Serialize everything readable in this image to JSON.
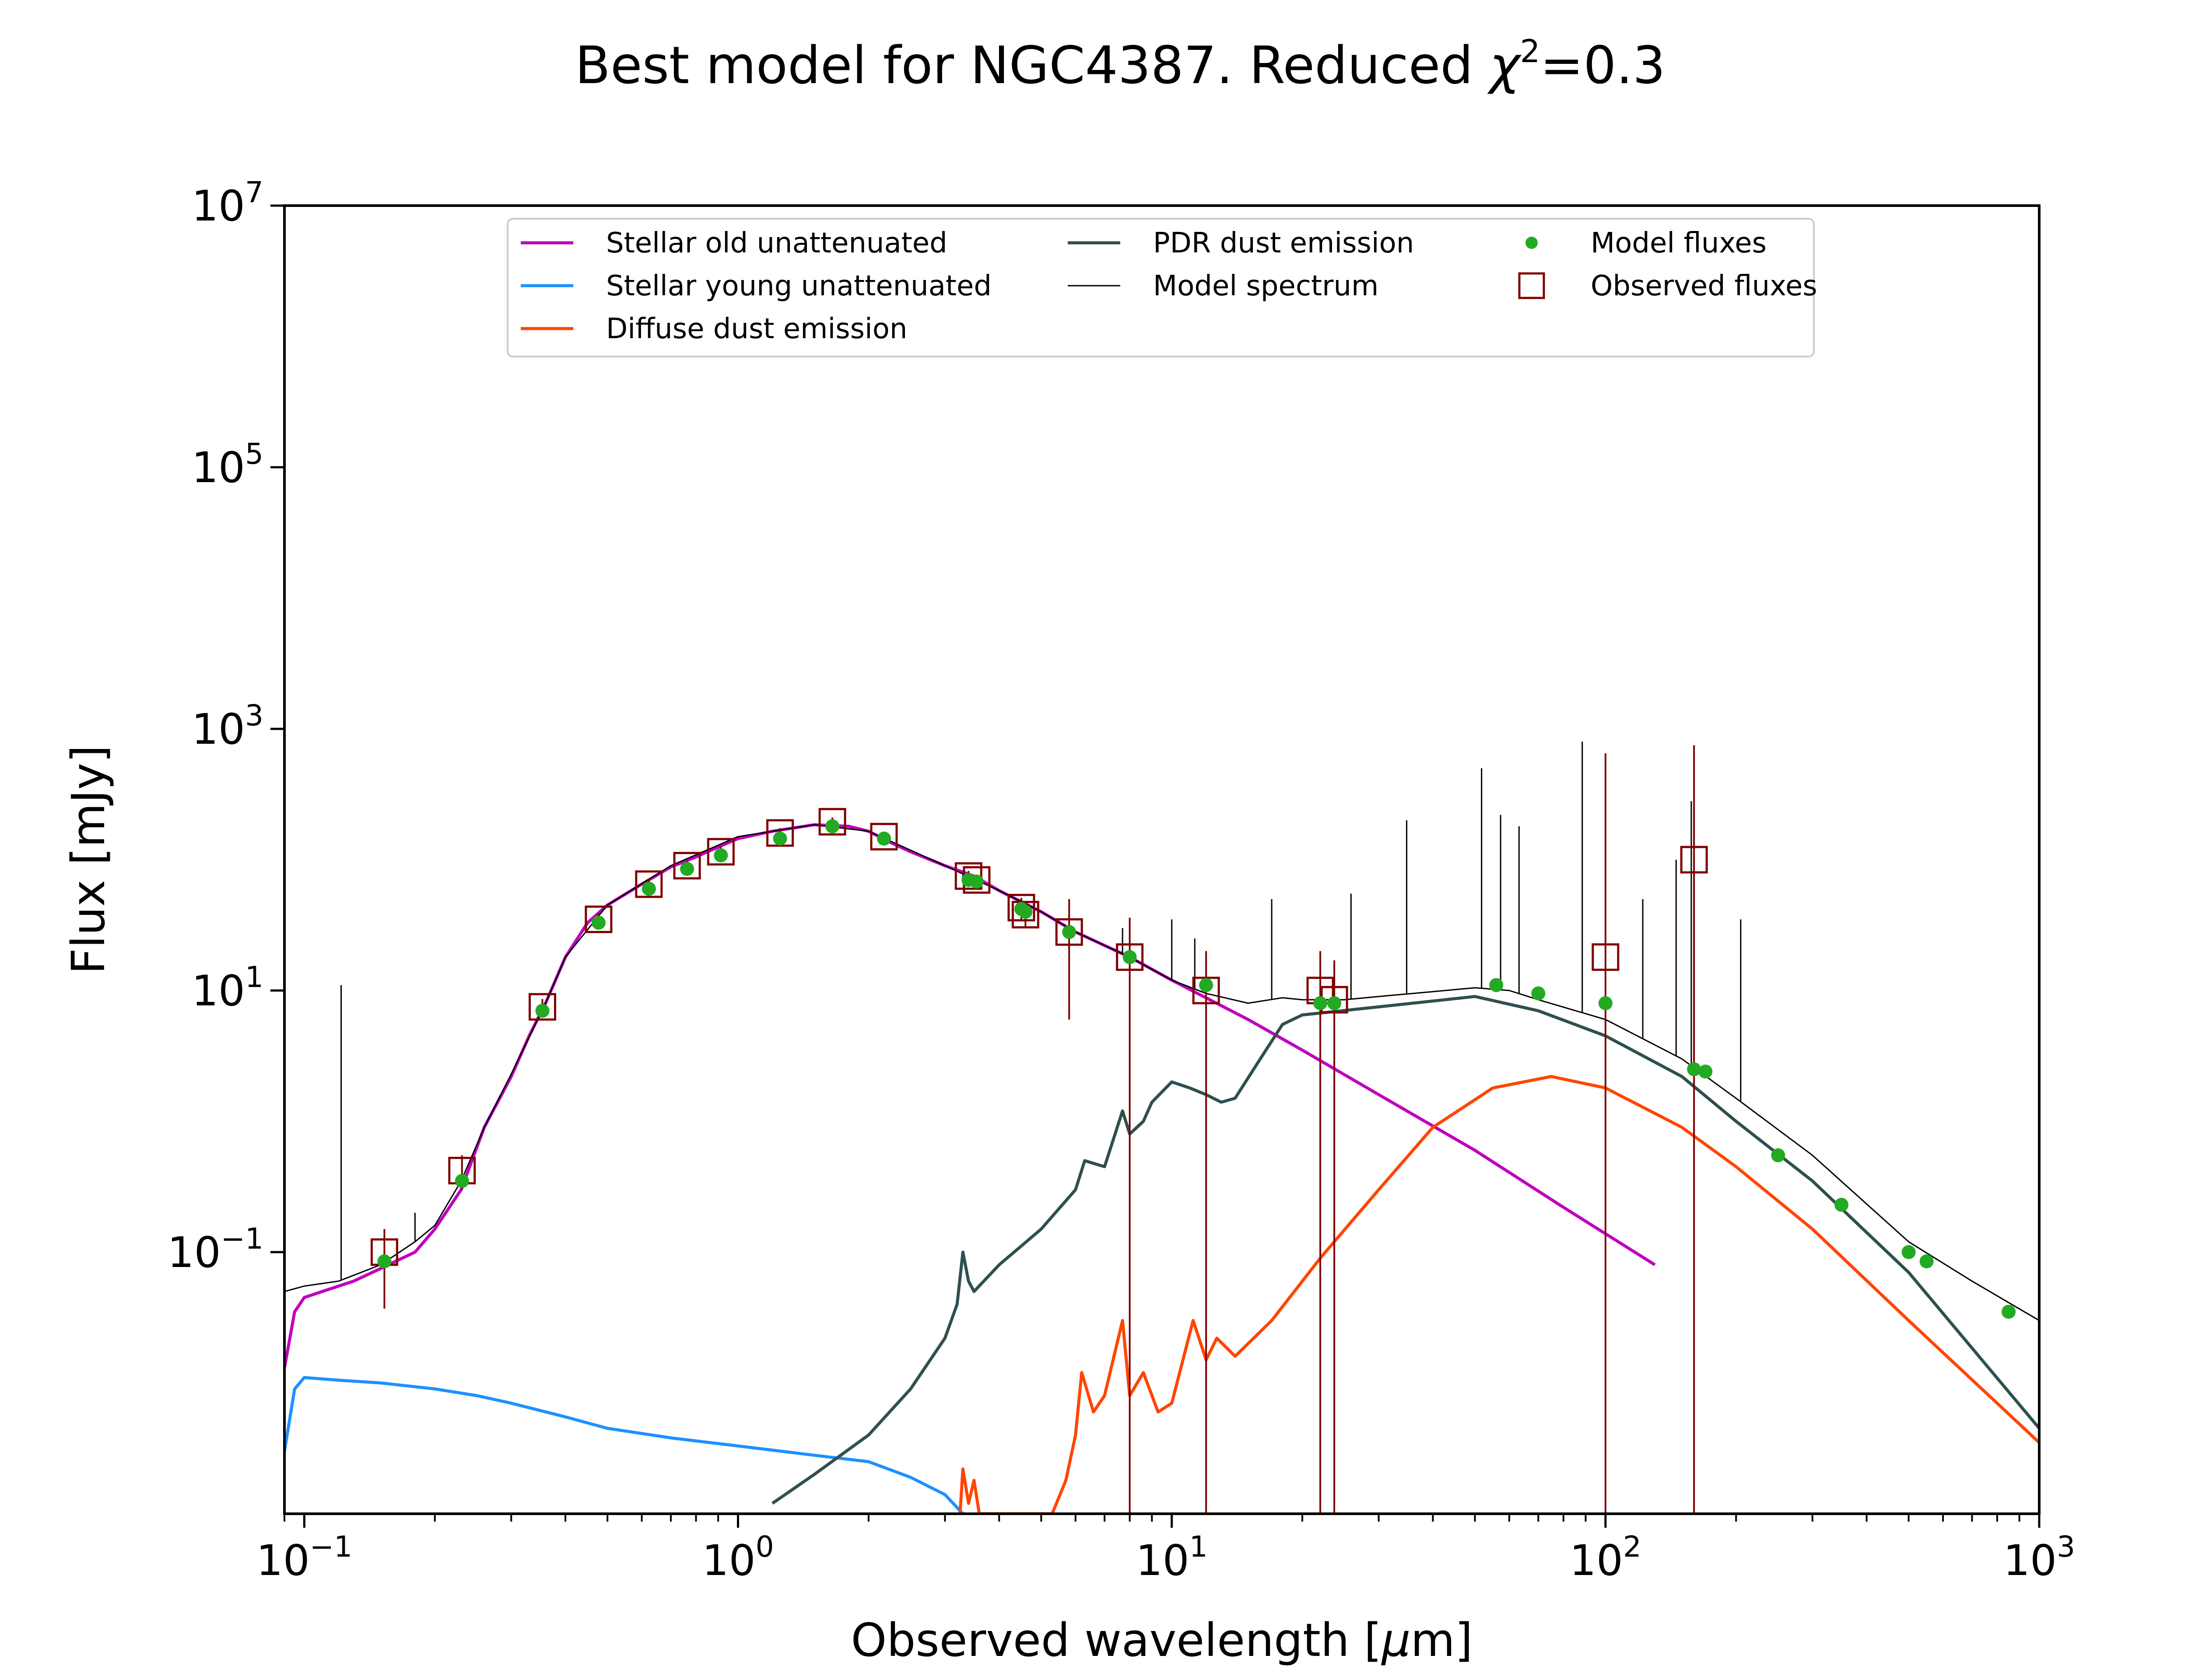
{
  "chart_data": {
    "type": "line",
    "title_prefix": "Best model for NGC4387. Reduced ",
    "title_chi": "χ",
    "title_chi_sup": "2",
    "title_suffix": "=0.3",
    "xlabel_prefix": "Observed wavelength [",
    "xlabel_mu": "μ",
    "xlabel_suffix": "m]",
    "ylabel": "Flux [mJy]",
    "xscale": "log",
    "yscale": "log",
    "xlim": [
      0.09,
      1000
    ],
    "ylim": [
      0.001,
      10000000
    ],
    "x_ticks": [
      {
        "value": 0.1,
        "base": "10",
        "exp": "−1"
      },
      {
        "value": 1,
        "base": "10",
        "exp": "0"
      },
      {
        "value": 10,
        "base": "10",
        "exp": "1"
      },
      {
        "value": 100,
        "base": "10",
        "exp": "2"
      },
      {
        "value": 1000,
        "base": "10",
        "exp": "3"
      }
    ],
    "y_ticks": [
      {
        "value": 0.1,
        "base": "10",
        "exp": "−1"
      },
      {
        "value": 10,
        "base": "10",
        "exp": "1"
      },
      {
        "value": 1000,
        "base": "10",
        "exp": "3"
      },
      {
        "value": 100000,
        "base": "10",
        "exp": "5"
      },
      {
        "value": 10000000,
        "base": "10",
        "exp": "7"
      }
    ],
    "legend_position": "upper-center",
    "colors": {
      "stellar_old": "#bf00bf",
      "stellar_young": "#1e90ff",
      "diffuse": "#ff4500",
      "pdr": "#2f4f4f",
      "model_spectrum": "#000000",
      "model_fluxes": "#22aa22",
      "observed": "#800000"
    },
    "legend": [
      {
        "key": "stellar_old",
        "label": "Stellar old unattenuated",
        "marker": "line"
      },
      {
        "key": "stellar_young",
        "label": "Stellar young unattenuated",
        "marker": "line"
      },
      {
        "key": "diffuse",
        "label": "Diffuse dust emission",
        "marker": "line"
      },
      {
        "key": "pdr",
        "label": "PDR dust emission",
        "marker": "line"
      },
      {
        "key": "model_spectrum",
        "label": "Model spectrum",
        "marker": "thinline"
      },
      {
        "key": "model_fluxes",
        "label": "Model fluxes",
        "marker": "dot"
      },
      {
        "key": "observed",
        "label": "Observed fluxes",
        "marker": "square"
      }
    ],
    "series": [
      {
        "key": "stellar_old",
        "x": [
          0.09,
          0.095,
          0.1,
          0.11,
          0.12,
          0.13,
          0.15,
          0.18,
          0.2,
          0.23,
          0.26,
          0.3,
          0.33,
          0.36,
          0.4,
          0.45,
          0.5,
          0.6,
          0.7,
          0.8,
          0.9,
          1.0,
          1.2,
          1.5,
          1.8,
          2.0,
          2.2,
          2.5,
          3.0,
          3.5,
          4.0,
          5.0,
          6.0,
          8.0,
          10,
          15,
          20,
          30,
          50,
          80,
          130
        ],
        "y": [
          0.013,
          0.035,
          0.045,
          0.05,
          0.055,
          0.06,
          0.075,
          0.1,
          0.15,
          0.3,
          0.9,
          2.2,
          4.5,
          8,
          18,
          33,
          45,
          65,
          88,
          105,
          125,
          145,
          165,
          185,
          180,
          165,
          140,
          115,
          90,
          75,
          58,
          40,
          28,
          18,
          12,
          6,
          3.5,
          1.6,
          0.6,
          0.22,
          0.08
        ]
      },
      {
        "key": "stellar_young",
        "x": [
          0.09,
          0.095,
          0.1,
          0.12,
          0.15,
          0.2,
          0.25,
          0.3,
          0.4,
          0.5,
          0.7,
          1.0,
          1.5,
          2.0,
          2.5,
          3.0,
          3.3
        ],
        "y": [
          0.003,
          0.009,
          0.011,
          0.0105,
          0.01,
          0.009,
          0.008,
          0.007,
          0.0055,
          0.0045,
          0.0038,
          0.0033,
          0.0028,
          0.0025,
          0.0019,
          0.0014,
          0.001
        ]
      },
      {
        "key": "diffuse",
        "x": [
          3.25,
          3.3,
          3.4,
          3.5,
          3.6,
          5.3,
          5.7,
          6.0,
          6.2,
          6.6,
          7.0,
          7.7,
          8.0,
          8.6,
          9.3,
          10,
          11.2,
          12,
          12.7,
          14,
          17,
          22,
          30,
          40,
          55,
          75,
          100,
          150,
          200,
          300,
          500,
          1000
        ],
        "y": [
          0.001,
          0.0022,
          0.0012,
          0.0018,
          0.001,
          0.001,
          0.0018,
          0.004,
          0.012,
          0.006,
          0.008,
          0.03,
          0.008,
          0.012,
          0.006,
          0.007,
          0.03,
          0.015,
          0.022,
          0.016,
          0.03,
          0.09,
          0.3,
          0.9,
          1.8,
          2.2,
          1.8,
          0.9,
          0.45,
          0.15,
          0.03,
          0.0035
        ]
      },
      {
        "key": "pdr",
        "x": [
          1.2,
          1.5,
          2.0,
          2.5,
          3.0,
          3.2,
          3.3,
          3.4,
          3.5,
          4.0,
          5.0,
          6.0,
          6.3,
          7.0,
          7.7,
          8.0,
          8.6,
          9.0,
          10,
          11,
          12,
          13,
          14,
          16,
          18,
          20,
          30,
          50,
          70,
          100,
          150,
          200,
          300,
          500,
          1000
        ],
        "y": [
          0.0012,
          0.002,
          0.004,
          0.009,
          0.022,
          0.04,
          0.1,
          0.06,
          0.05,
          0.08,
          0.15,
          0.3,
          0.5,
          0.45,
          1.2,
          0.8,
          1.0,
          1.4,
          2.0,
          1.8,
          1.6,
          1.4,
          1.5,
          3.0,
          5.5,
          6.5,
          7.5,
          9,
          7,
          4.5,
          2.2,
          1.0,
          0.35,
          0.07,
          0.0045
        ]
      },
      {
        "key": "model_spectrum",
        "x": [
          0.09,
          0.1,
          0.12,
          0.15,
          0.18,
          0.2,
          0.23,
          0.26,
          0.3,
          0.36,
          0.4,
          0.5,
          0.7,
          1.0,
          1.5,
          2.0,
          3.0,
          4.0,
          5.0,
          6.0,
          8.0,
          10,
          12,
          15,
          18,
          20,
          25,
          30,
          40,
          50,
          60,
          70,
          100,
          150,
          200,
          300,
          500,
          700,
          1000
        ],
        "y": [
          0.05,
          0.055,
          0.06,
          0.08,
          0.12,
          0.16,
          0.35,
          0.9,
          2.3,
          8,
          18,
          45,
          90,
          150,
          185,
          165,
          90,
          58,
          40,
          28,
          18,
          12,
          9.5,
          8,
          8.8,
          8.5,
          8.5,
          9,
          9.8,
          10.5,
          10,
          8.5,
          6,
          3,
          1.5,
          0.55,
          0.12,
          0.06,
          0.03
        ]
      }
    ],
    "spikes": [
      {
        "x": 0.1216,
        "y": 11
      },
      {
        "x": 0.18,
        "y": 0.2
      },
      {
        "x": 3.3,
        "y": 70
      },
      {
        "x": 7.7,
        "y": 30
      },
      {
        "x": 10,
        "y": 35
      },
      {
        "x": 11.3,
        "y": 25
      },
      {
        "x": 17,
        "y": 50
      },
      {
        "x": 25.9,
        "y": 55
      },
      {
        "x": 34.8,
        "y": 200
      },
      {
        "x": 51.8,
        "y": 500
      },
      {
        "x": 57.3,
        "y": 220
      },
      {
        "x": 63.2,
        "y": 180
      },
      {
        "x": 88.4,
        "y": 800
      },
      {
        "x": 121.9,
        "y": 50
      },
      {
        "x": 145.5,
        "y": 100
      },
      {
        "x": 157.7,
        "y": 280
      },
      {
        "x": 205,
        "y": 35
      }
    ],
    "model_fluxes": {
      "x": [
        0.153,
        0.231,
        0.354,
        0.477,
        0.623,
        0.763,
        0.913,
        1.25,
        1.65,
        2.17,
        3.4,
        3.55,
        4.5,
        4.6,
        5.8,
        8.0,
        12.0,
        22.0,
        23.7,
        56,
        70,
        100,
        160,
        170,
        250,
        350,
        500,
        550,
        850
      ],
      "y": [
        0.085,
        0.35,
        7,
        33,
        60,
        85,
        108,
        145,
        180,
        145,
        70,
        68,
        42,
        40,
        28,
        18,
        11,
        8,
        8,
        11,
        9.5,
        8,
        2.5,
        2.4,
        0.55,
        0.23,
        0.1,
        0.085,
        0.035
      ]
    },
    "observed_fluxes": {
      "x": [
        0.153,
        0.231,
        0.354,
        0.477,
        0.623,
        0.763,
        0.913,
        1.25,
        1.65,
        2.17,
        3.4,
        3.55,
        4.5,
        4.6,
        5.8,
        8.0,
        12.0,
        22.0,
        23.7,
        100,
        160
      ],
      "y": [
        0.1,
        0.42,
        7.5,
        35,
        65,
        90,
        115,
        160,
        195,
        150,
        75,
        70,
        43,
        38,
        28,
        18,
        10,
        10,
        8.5,
        18,
        100
      ],
      "err_low": [
        0.037,
        0.3,
        6.4,
        31,
        58,
        82,
        104,
        146,
        180,
        136,
        68,
        63,
        35,
        30,
        6,
        0.001,
        0.001,
        0.001,
        0.001,
        0.001,
        0.001
      ],
      "err_high": [
        0.15,
        0.55,
        8.6,
        39,
        72,
        98,
        126,
        174,
        210,
        164,
        82,
        77,
        51,
        46,
        50,
        36,
        20,
        20,
        17,
        650,
        750
      ]
    }
  }
}
